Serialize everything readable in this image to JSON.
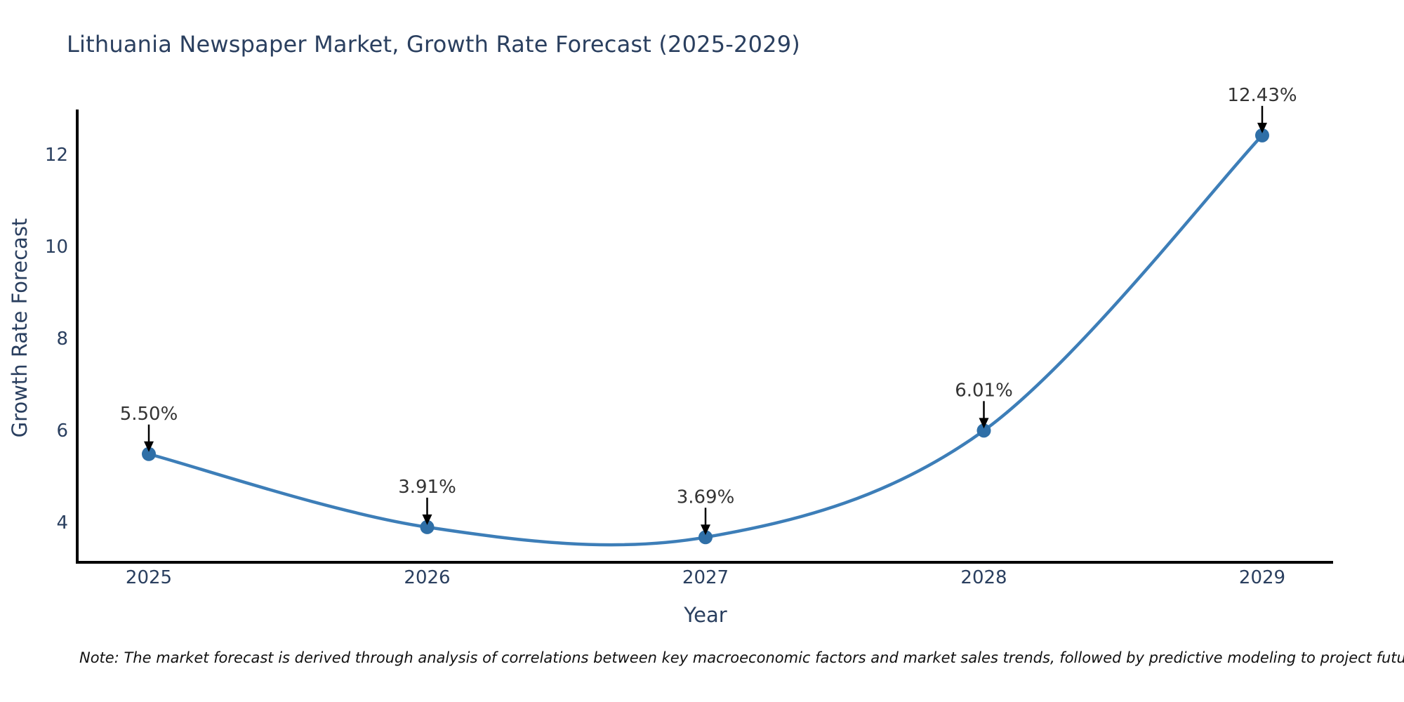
{
  "chart_data": {
    "type": "line",
    "title": "Lithuania Newspaper Market, Growth Rate Forecast (2025-2029)",
    "xlabel": "Year",
    "ylabel": "Growth Rate Forecast",
    "categories": [
      "2025",
      "2026",
      "2027",
      "2028",
      "2029"
    ],
    "x": [
      2025,
      2026,
      2027,
      2028,
      2029
    ],
    "series": [
      {
        "name": "Growth Rate Forecast",
        "values": [
          5.5,
          3.91,
          3.69,
          6.01,
          12.43
        ],
        "point_labels": [
          "5.50%",
          "3.91%",
          "3.69%",
          "6.01%",
          "12.43%"
        ]
      }
    ],
    "yticks": [
      4,
      6,
      8,
      10,
      12
    ],
    "ylim": [
      3.15,
      13.05
    ],
    "xlim": [
      2024.74,
      2029.26
    ],
    "grid": false,
    "legend_position": "none",
    "curve_style": "smooth-spline",
    "annotation_style": "value-label-with-down-arrow",
    "note": "Note: The market forecast is derived through analysis of correlations between key macroeconomic factors and market sales trends, followed by predictive modeling to project future sales"
  },
  "colors": {
    "line": "#3d7eb8",
    "marker": "#2f6fa7",
    "axis": "#000000",
    "heading_text": "#2a3f5f",
    "tick_text": "#2a3f5f",
    "annotation_text": "#333333",
    "arrow": "#000000",
    "background": "#ffffff"
  }
}
